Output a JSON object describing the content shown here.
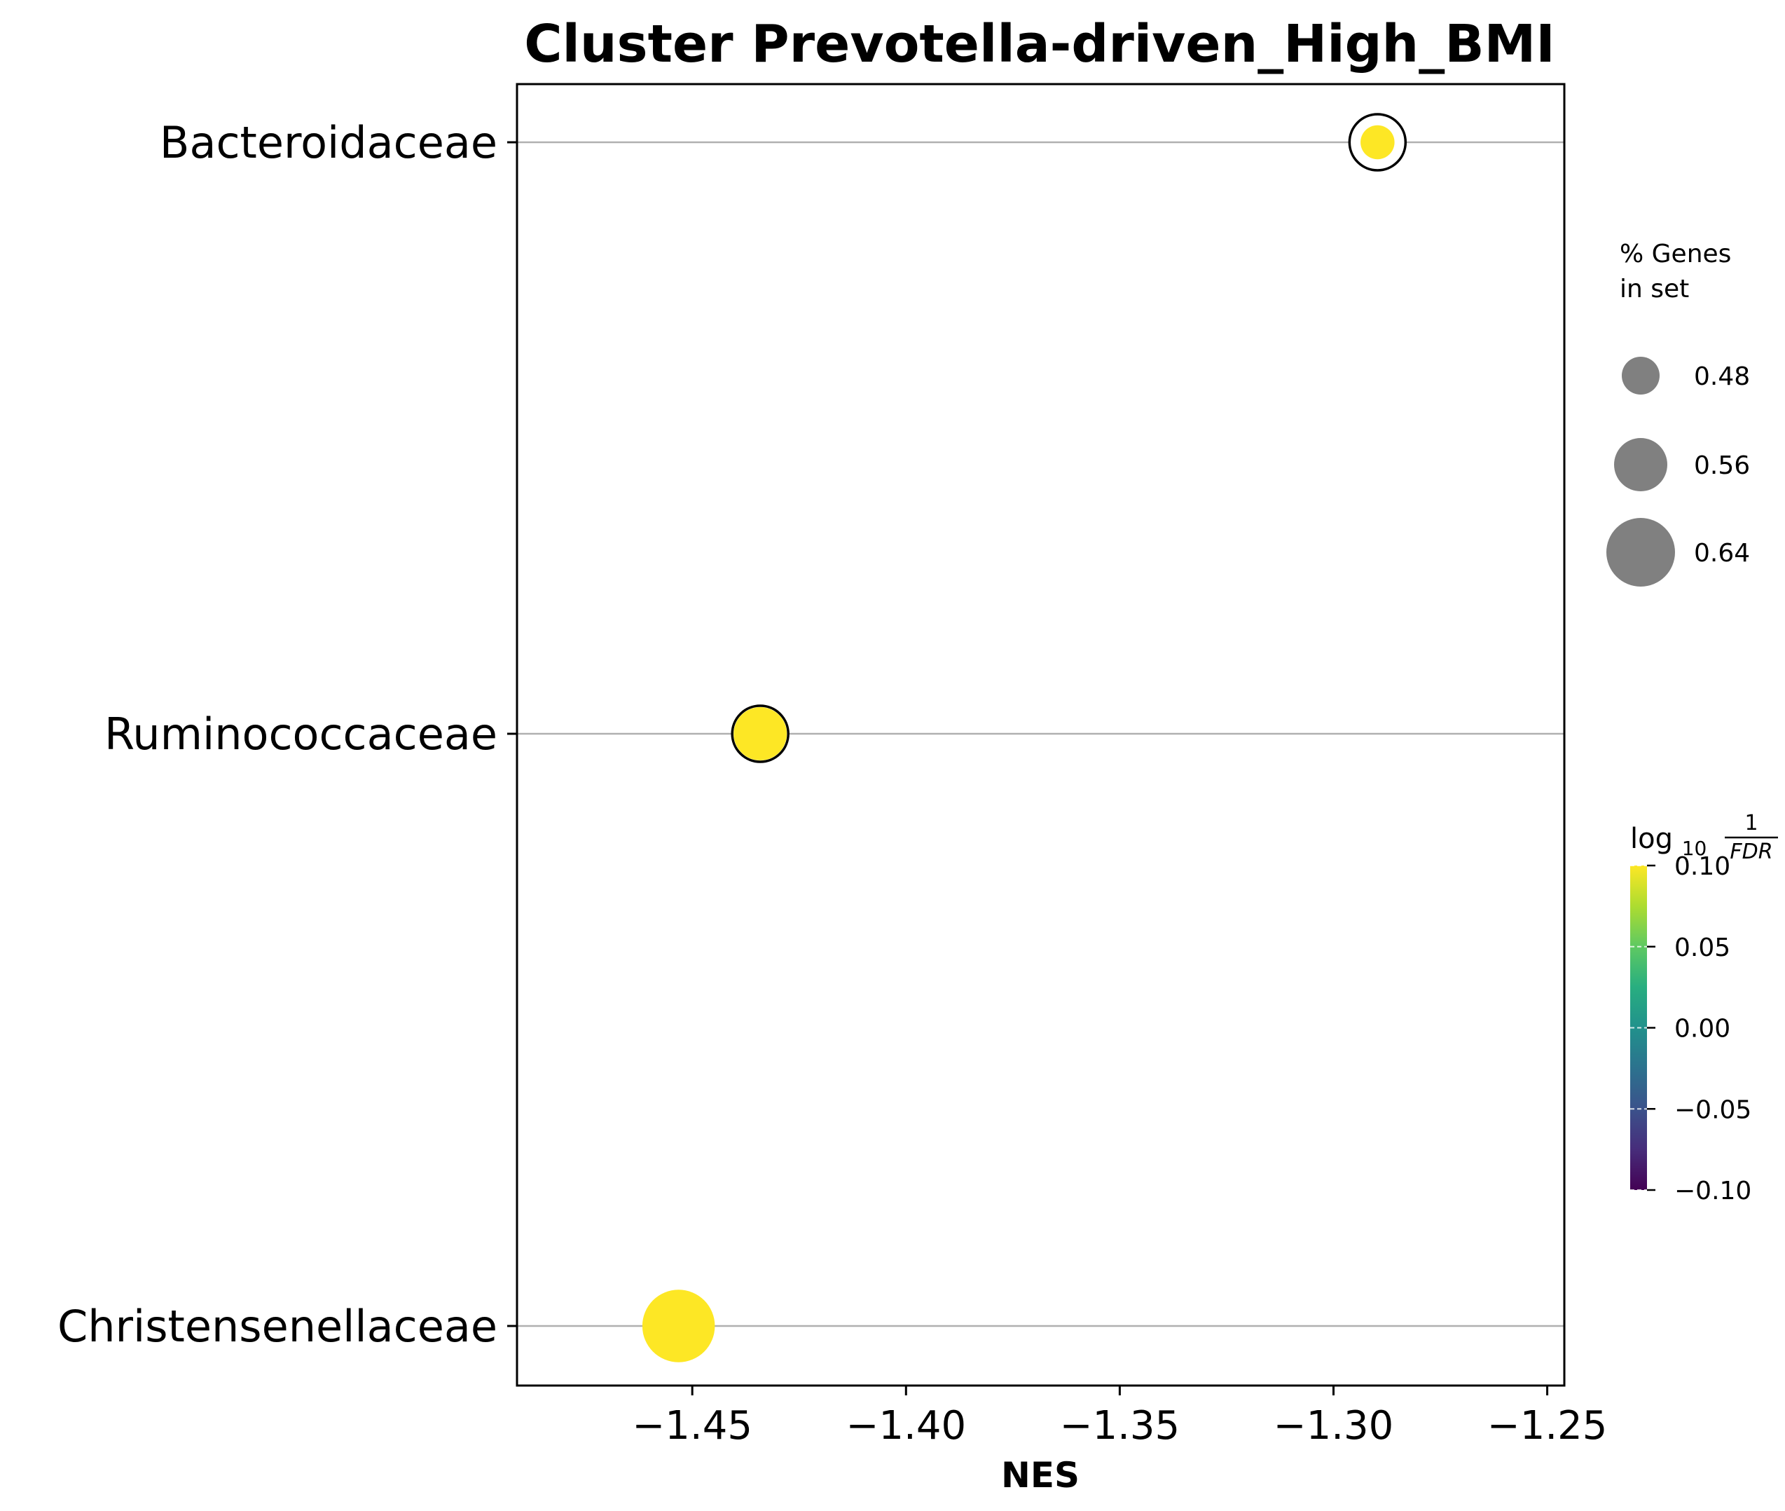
{
  "chart_data": {
    "type": "scatter",
    "title": "Cluster Prevotella-driven_High_BMI",
    "xlabel": "NES",
    "ylabel": "",
    "xlim": [
      -1.491,
      -1.246
    ],
    "xticks": [
      -1.45,
      -1.4,
      -1.35,
      -1.3,
      -1.25
    ],
    "xtick_labels": [
      "−1.45",
      "−1.40",
      "−1.35",
      "−1.30",
      "−1.25"
    ],
    "categories": [
      "Bacteroidaceae",
      "Ruminococcaceae",
      "Christensenellaceae"
    ],
    "points": [
      {
        "category": "Bacteroidaceae",
        "x": -1.2897,
        "gene_pct": 0.46,
        "log10_inv_fdr": 0.1
      },
      {
        "category": "Ruminococcaceae",
        "x": -1.4341,
        "gene_pct": 0.56,
        "log10_inv_fdr": 0.1
      },
      {
        "category": "Christensenellaceae",
        "x": -1.4532,
        "gene_pct": 0.66,
        "log10_inv_fdr": 0.1
      }
    ],
    "grid": "horizontal",
    "size_legend": {
      "title_line1": "% Genes",
      "title_line2": "in set",
      "entries": [
        {
          "label": "0.48",
          "value": 0.48
        },
        {
          "label": "0.56",
          "value": 0.56
        },
        {
          "label": "0.64",
          "value": 0.64
        }
      ]
    },
    "colorbar": {
      "title_base": "log",
      "title_sub": "10",
      "title_num": "1",
      "title_den": "FDR",
      "colormap": "viridis",
      "range": [
        -0.1,
        0.1
      ],
      "ticks": [
        0.1,
        0.05,
        0.0,
        -0.05,
        -0.1
      ],
      "tick_labels": [
        "0.10",
        "0.05",
        "0.00",
        "−0.05",
        "−0.10"
      ]
    },
    "colors": {
      "marker_fill": "#fde725",
      "marker_ring": "#000000",
      "legend_marker": "#808080",
      "grid": "#b0b0b0"
    }
  }
}
